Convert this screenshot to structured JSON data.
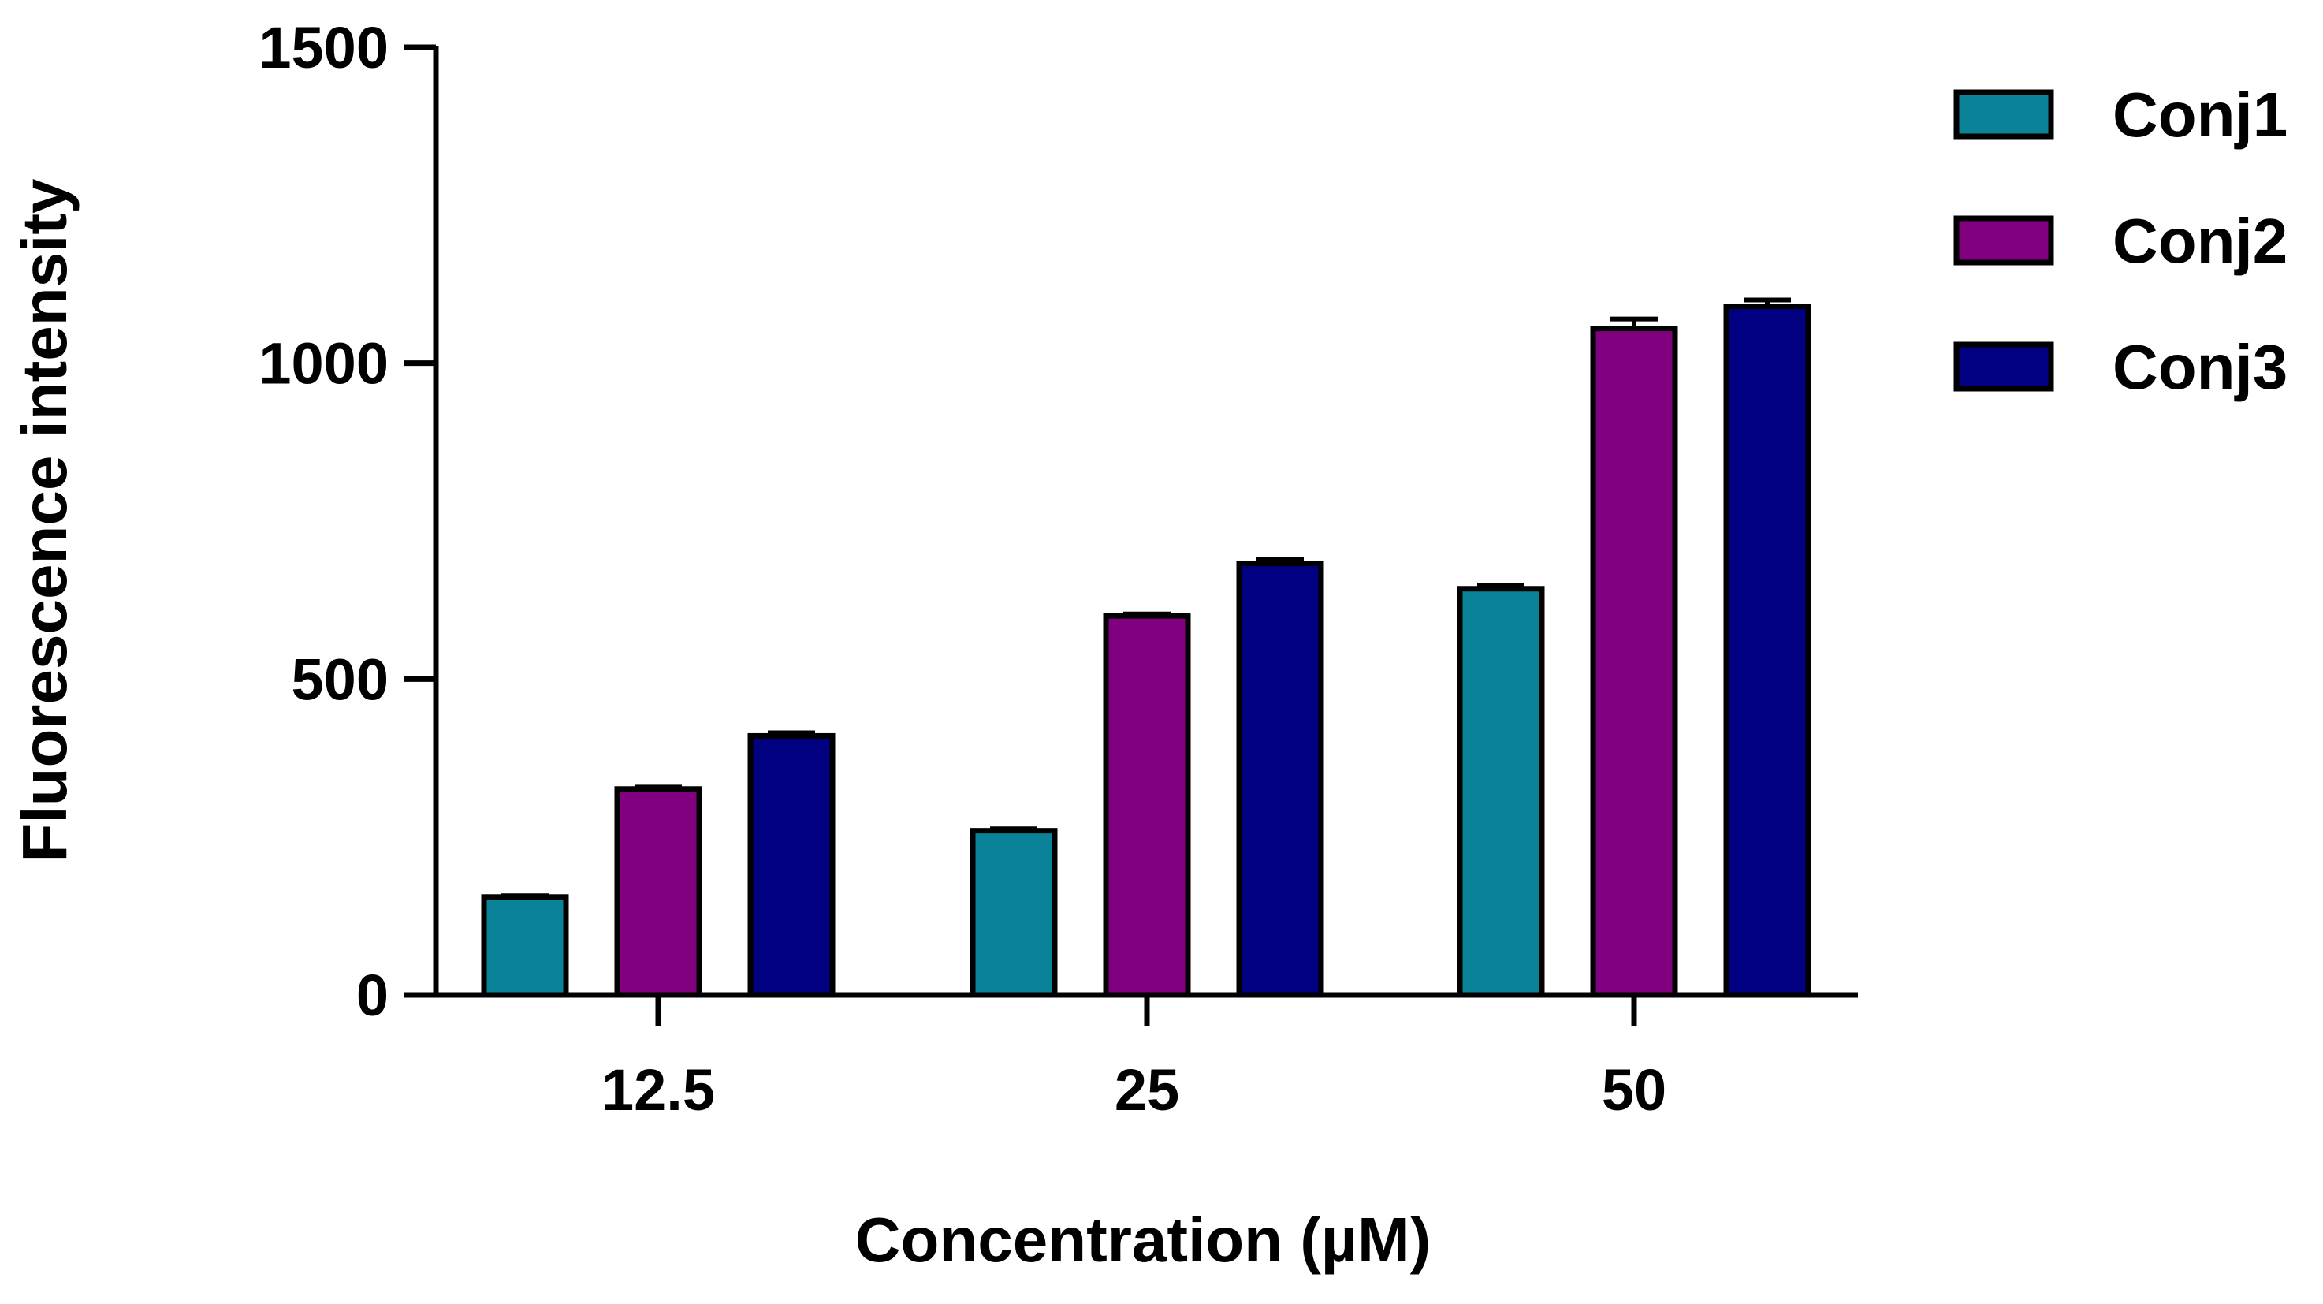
{
  "chart_data": {
    "type": "bar",
    "title": "",
    "xlabel": "Concentration (µM)",
    "ylabel": "Fluorescence intensity",
    "categories": [
      "12.5",
      "25",
      "50"
    ],
    "ylim": [
      0,
      1500
    ],
    "yticks": [
      0,
      500,
      1000,
      1500
    ],
    "grid": false,
    "legend_position": "top-right",
    "series": [
      {
        "name": "Conj1",
        "color": "#0A8399",
        "values": [
          155,
          260,
          643
        ],
        "errors": [
          2,
          3,
          5
        ]
      },
      {
        "name": "Conj2",
        "color": "#800080",
        "values": [
          326,
          600,
          1055
        ],
        "errors": [
          3,
          3,
          15
        ]
      },
      {
        "name": "Conj3",
        "color": "#000080",
        "values": [
          410,
          683,
          1090
        ],
        "errors": [
          5,
          6,
          10
        ]
      }
    ],
    "error_bars": "upper"
  }
}
